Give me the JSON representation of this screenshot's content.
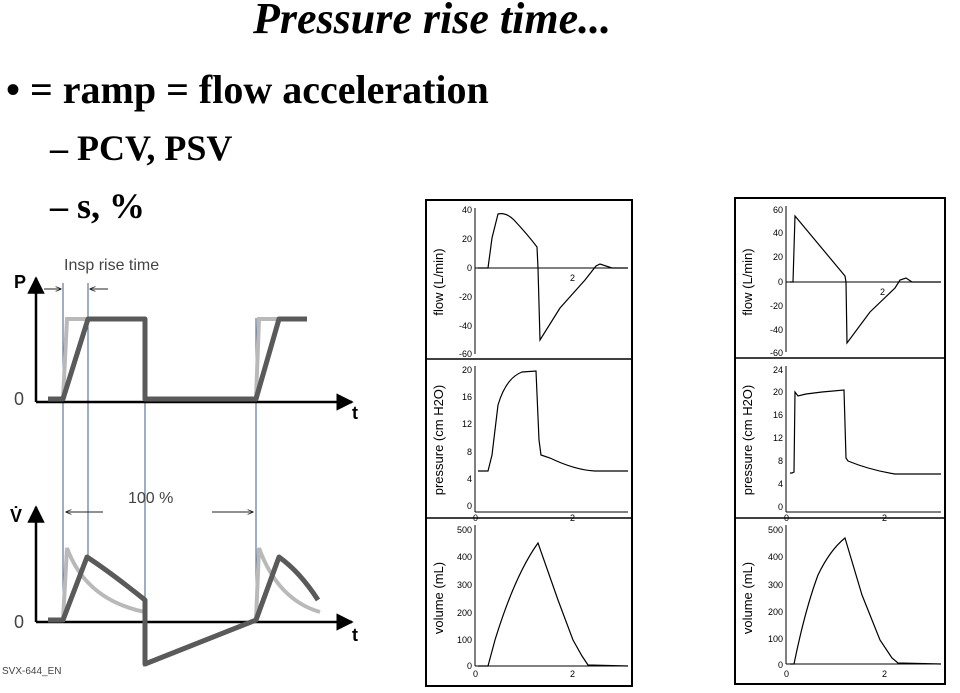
{
  "slide": {
    "title": "Pressure rise time...",
    "bullet1": "• = ramp = flow acceleration",
    "bullet2": "– PCV, PSV",
    "bullet3": "– s, %"
  },
  "schematic": {
    "pressure_axis": "P",
    "flow_axis": "V̇",
    "time_axis": "t",
    "zero_label": "0",
    "rise_time_label": "Insp rise time",
    "percent_label": "100 %",
    "figure_code": "SVX-644_EN",
    "line_colors": {
      "slow_ramp": "#5a5a5a",
      "fast_ramp": "#b9b9b9",
      "guide": "#3f5f86"
    }
  },
  "recordings": {
    "left": {
      "flow_panel": {
        "ylabel": "flow (L/min)",
        "yticks": [
          "40",
          "20",
          "0",
          "-20",
          "-40",
          "-60"
        ],
        "xtick": "2"
      },
      "pressure_panel": {
        "ylabel": "pressure (cm H2O)",
        "yticks": [
          "20",
          "16",
          "12",
          "8",
          "4",
          "0"
        ],
        "xticks": [
          "0",
          "2"
        ]
      },
      "volume_panel": {
        "ylabel": "volume (mL)",
        "yticks": [
          "500",
          "400",
          "300",
          "200",
          "100",
          "0"
        ],
        "xticks": [
          "0",
          "2"
        ]
      }
    },
    "right": {
      "flow_panel": {
        "ylabel": "flow (L/min)",
        "yticks": [
          "60",
          "40",
          "20",
          "0",
          "-20",
          "-40",
          "-60"
        ],
        "xtick": "2"
      },
      "pressure_panel": {
        "ylabel": "pressure (cm H2O)",
        "yticks": [
          "24",
          "20",
          "16",
          "12",
          "8",
          "4",
          "0"
        ],
        "xticks": [
          "0",
          "2"
        ]
      },
      "volume_panel": {
        "ylabel": "volume (mL)",
        "yticks": [
          "500",
          "400",
          "300",
          "200",
          "100",
          "0"
        ],
        "xticks": [
          "0",
          "2"
        ]
      }
    }
  }
}
